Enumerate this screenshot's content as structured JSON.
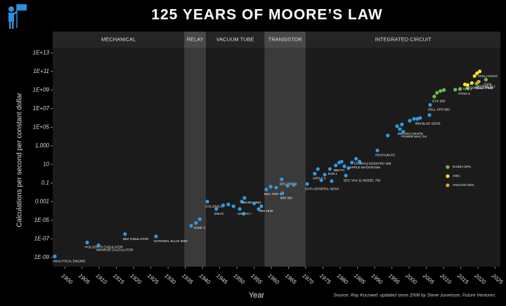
{
  "chart_data": {
    "type": "scatter",
    "title": "125 YEARS OF MOORE’S LAW",
    "x_label": "Year",
    "y_label": "Calculations per second per constant dollar",
    "source": "Source: Ray Kurzweil, updated since 2008 by Steve Jurvetson, Future Ventures.",
    "log_y": true,
    "xlim": [
      1896.5,
      2026.5
    ],
    "ylim": [
      1e-10,
      100000000000000.0
    ],
    "xticks": [
      1900,
      1905,
      1910,
      1915,
      1920,
      1925,
      1930,
      1935,
      1940,
      1945,
      1950,
      1955,
      1960,
      1965,
      1970,
      1975,
      1980,
      1985,
      1990,
      1995,
      2000,
      2005,
      2010,
      2015,
      2020,
      2025
    ],
    "yticks": [
      {
        "value": 1e-09,
        "label": "1E-09"
      },
      {
        "value": 1e-07,
        "label": "1E-07"
      },
      {
        "value": 1e-05,
        "label": "1E-05"
      },
      0.001,
      0.1,
      10,
      {
        "value": 1000,
        "label": "1,000"
      },
      {
        "value": 100000.0,
        "label": "1E+05"
      },
      {
        "value": 10000000.0,
        "label": "1E+07"
      },
      {
        "value": 1000000000.0,
        "label": "1E+09"
      },
      {
        "value": 100000000000.0,
        "label": "1E+11"
      },
      {
        "value": 10000000000000.0,
        "label": "1E+13"
      }
    ],
    "eras": [
      {
        "label": "MECHANICAL",
        "range": [
          1896.5,
          1934.7
        ]
      },
      {
        "label": "RELAY",
        "range": [
          1934.7,
          1941
        ]
      },
      {
        "label": "VACUUM TUBE",
        "range": [
          1941,
          1958
        ]
      },
      {
        "label": "TRANSISTOR",
        "range": [
          1958,
          1970
        ]
      },
      {
        "label": "INTEGRATED CIRCUIT",
        "range": [
          1970,
          2026.5
        ]
      }
    ],
    "series": [
      {
        "color": "#2f9be0",
        "x": [
          1897.1,
          1906.5,
          1909.8,
          1917.5,
          1926.5,
          1936.7,
          1938.1,
          1939.2,
          1941.4,
          1944,
          1946,
          1947.5,
          1949,
          1950.8,
          1951.4,
          1952.2,
          1952,
          1955,
          1956.3,
          1957.1,
          1958.5,
          1959.8,
          1961.4,
          1963,
          1963.2,
          1964.7,
          1966.5,
          1970.4,
          1972.6,
          1973.5,
          1974.5,
          1975.5,
          1977,
          1977.5,
          1978.7,
          1979.7,
          1980.4,
          1981.2,
          1981.6,
          1982.4,
          1983.4,
          1984.6,
          1985.6,
          1990.8,
          1993.8,
          1996.5,
          1997.3,
          1997.9,
          1998.3,
          2000.2,
          2001.4,
          2002.4,
          2003.2,
          2005.9,
          2006.1
        ],
        "values": [
          1.3e-09,
          4e-08,
          2e-08,
          3.2e-07,
          1.8e-07,
          2.5e-06,
          5e-06,
          1.3e-05,
          0.001,
          0.00016,
          0.0004,
          0.0005,
          0.00032,
          0.00016,
          0.001,
          0.0025,
          5e-05,
          0.00063,
          0.00016,
          0.00032,
          0.02,
          0.04,
          0.032,
          0.25,
          0.008,
          0.05,
          0.063,
          0.079,
          1,
          3.2,
          0.2,
          0.79,
          3.2,
          0.16,
          7.9,
          16,
          20,
          6.3,
          0.63,
          4,
          16,
          40,
          20,
          320,
          13000,
          130000,
          63000,
          200000,
          32000,
          500000,
          790000,
          790000,
          1000000,
          2000000,
          25000000
        ],
        "labels": [
          "ANALYTICAL ENGINE",
          "HOLLERITH TABULATOR",
          "MONROE CALCULATOR",
          "IBM TABULATOR",
          "NATIONAL ELLIS 3000",
          null,
          "ZUSE 3",
          null,
          "COLOSSUS",
          "ENIAC",
          null,
          null,
          null,
          "UNIVAC I",
          null,
          "WHIRLWIND",
          null,
          null,
          null,
          "IBM 1620",
          "DEC PDP-1",
          null,
          null,
          "DEC PDP-8",
          "IBM 360",
          null,
          null,
          "DATA GENERAL NOVA",
          "APPLE II",
          null,
          null,
          null,
          "SUN 1",
          null,
          "IBM PC",
          null,
          null,
          null,
          "DEC VAX 11 MODEL 780",
          null,
          "APPLE MACINTOSH",
          "COMPAQ DESKPRO 386",
          null,
          "PENTIUM PC",
          null,
          null,
          "IBM ASCI WHITE",
          null,
          "POWER MAC G4",
          null,
          null,
          "IBM BLUE GENE",
          null,
          null,
          "DELL XPS 600"
        ]
      },
      {
        "name": "NVIDIA GPU",
        "color": "#6cc04a",
        "x": [
          2007.3,
          2008.1,
          2009.1,
          2010.1,
          2013.4,
          2014.8,
          2017,
          2019.6,
          2022.3
        ],
        "values": [
          200000000.0,
          500000000.0,
          790000000.0,
          1000000000.0,
          1100000000.0,
          1300000000.0,
          1600000000.0,
          5000000000.0,
          13000000000.0
        ],
        "labels": [
          "GTX 280",
          null,
          null,
          null,
          null,
          "TITAN X",
          null,
          "TESLA P100",
          "H100"
        ]
      },
      {
        "name": "ASIC",
        "color": "#f2e22b",
        "x": [
          2016.2,
          2017,
          2018.2,
          2019,
          2019.7,
          2020.5
        ],
        "values": [
          4000000000.0,
          3500000000.0,
          5600000000.0,
          32000000000.0,
          63000000000.0,
          100000000000.0
        ],
        "labels": [
          "TPU 2",
          null,
          "GOOGLE TPU4",
          null,
          null,
          "TESLA DOJO"
        ]
      },
      {
        "name": "ANALOG ASIC",
        "color": "#f0a030",
        "x": [
          2020.2
        ],
        "values": [
          7900000000.0
        ],
        "labels": [
          "MYTHIC M.2"
        ]
      }
    ]
  }
}
